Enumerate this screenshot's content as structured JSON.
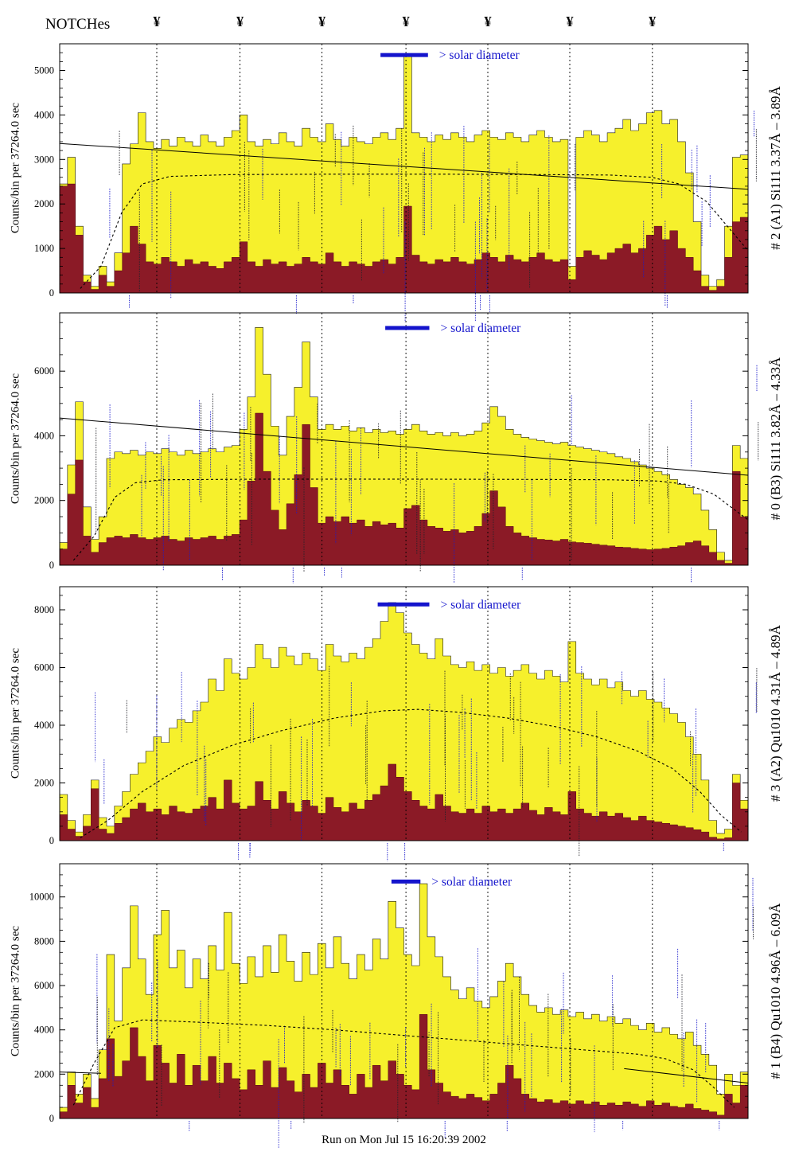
{
  "header": {
    "notches_label": "NOTCHes",
    "notch_symbol": "¥"
  },
  "y_axis_label": "Counts/bin per  37264.0 sec",
  "solar_label": "> solar diameter",
  "footer": {
    "run_text": "Run on Mon Jul 15 16:20:39 2002"
  },
  "colors": {
    "hist_fill": "#f6f02c",
    "hist_outline": "#1a1a1a",
    "background_fill": "#8b1a26",
    "annotation_blue": "#1a1acb",
    "solar_blue": "#1414cc",
    "axis_black": "#000000"
  },
  "notch_positions": [
    0.141,
    0.262,
    0.381,
    0.503,
    0.622,
    0.741,
    0.861
  ],
  "chart_data": [
    {
      "type": "histogram",
      "label": "# 2 (A1) Si111  3.37Å – 3.89Å",
      "x_range": [
        0,
        1
      ],
      "ylim": [
        0,
        5600
      ],
      "yticks": [
        0,
        1000,
        2000,
        3000,
        4000,
        5000
      ],
      "y_minor_step": 200,
      "solar_bar": {
        "x1": 0.466,
        "x2": 0.535,
        "yfrac": 0.045
      },
      "series": [
        {
          "name": "total-counts",
          "color": "#f6f02c",
          "values": [
            2450,
            3050,
            1500,
            400,
            150,
            600,
            250,
            900,
            2900,
            3350,
            4050,
            3400,
            3250,
            3450,
            3300,
            3500,
            3400,
            3300,
            3550,
            3400,
            3300,
            3500,
            3650,
            4000,
            3400,
            3300,
            3450,
            3350,
            3600,
            3400,
            3300,
            3700,
            3500,
            3400,
            3800,
            3450,
            3300,
            3500,
            3400,
            3350,
            3500,
            3600,
            3450,
            3700,
            5350,
            3600,
            3500,
            3400,
            3550,
            3450,
            3600,
            3500,
            3400,
            3550,
            3650,
            3500,
            3450,
            3600,
            3500,
            3400,
            3550,
            3650,
            3500,
            3400,
            3450,
            600,
            3500,
            3650,
            3550,
            3400,
            3600,
            3700,
            3900,
            3650,
            3800,
            4050,
            4100,
            3800,
            3900,
            3400,
            2700,
            1600,
            400,
            150,
            300,
            1500,
            3050,
            3100
          ]
        },
        {
          "name": "background-counts",
          "color": "#8b1a26",
          "values": [
            2400,
            2450,
            1300,
            250,
            80,
            400,
            150,
            500,
            900,
            1500,
            1100,
            700,
            650,
            800,
            700,
            600,
            750,
            650,
            700,
            600,
            550,
            700,
            800,
            1150,
            700,
            600,
            750,
            650,
            700,
            600,
            650,
            800,
            700,
            650,
            900,
            700,
            600,
            700,
            650,
            600,
            700,
            750,
            650,
            800,
            1950,
            850,
            700,
            650,
            750,
            700,
            800,
            700,
            650,
            750,
            900,
            800,
            700,
            850,
            750,
            700,
            800,
            900,
            750,
            700,
            750,
            300,
            800,
            950,
            850,
            750,
            900,
            1000,
            1100,
            900,
            1000,
            1300,
            1500,
            1200,
            1400,
            1000,
            800,
            500,
            150,
            60,
            150,
            800,
            1600,
            1700
          ]
        }
      ],
      "dashed_curve": [
        [
          0.03,
          100
        ],
        [
          0.06,
          600
        ],
        [
          0.09,
          1800
        ],
        [
          0.12,
          2450
        ],
        [
          0.16,
          2620
        ],
        [
          0.25,
          2660
        ],
        [
          0.4,
          2670
        ],
        [
          0.55,
          2670
        ],
        [
          0.7,
          2660
        ],
        [
          0.8,
          2650
        ],
        [
          0.86,
          2600
        ],
        [
          0.9,
          2450
        ],
        [
          0.94,
          2050
        ],
        [
          0.97,
          1500
        ],
        [
          1.0,
          950
        ]
      ],
      "solid_lines": [
        [
          [
            0,
            3360
          ],
          [
            1,
            2330
          ]
        ]
      ]
    },
    {
      "type": "histogram",
      "label": "# 0 (B3) Si111  3.82Å – 4.33Å",
      "x_range": [
        0,
        1
      ],
      "ylim": [
        0,
        7800
      ],
      "yticks": [
        0,
        2000,
        4000,
        6000
      ],
      "y_minor_step": 500,
      "solar_bar": {
        "x1": 0.473,
        "x2": 0.537,
        "yfrac": 0.06
      },
      "series": [
        {
          "name": "total-counts",
          "color": "#f6f02c",
          "values": [
            700,
            3100,
            5050,
            1800,
            800,
            1500,
            3300,
            3500,
            3450,
            3550,
            3400,
            3500,
            3450,
            3600,
            3500,
            3400,
            3550,
            3450,
            3500,
            3600,
            3500,
            3650,
            3700,
            4200,
            5200,
            7350,
            5900,
            4300,
            3400,
            4600,
            5500,
            6900,
            5200,
            4200,
            4350,
            4200,
            4300,
            4150,
            4250,
            4100,
            4200,
            4100,
            4150,
            4050,
            4200,
            4350,
            4150,
            4050,
            4100,
            4000,
            4100,
            4000,
            4050,
            4150,
            4400,
            4900,
            4600,
            4200,
            4050,
            3950,
            3900,
            3850,
            3800,
            3750,
            3800,
            3700,
            3650,
            3600,
            3550,
            3500,
            3450,
            3350,
            3300,
            3200,
            3100,
            3000,
            2900,
            2800,
            2650,
            2500,
            2400,
            2200,
            1700,
            1100,
            400,
            150,
            3700,
            3300
          ]
        },
        {
          "name": "background-counts",
          "color": "#8b1a26",
          "values": [
            500,
            2200,
            3250,
            900,
            400,
            700,
            850,
            900,
            850,
            950,
            850,
            800,
            850,
            900,
            800,
            750,
            850,
            800,
            850,
            900,
            800,
            900,
            950,
            1400,
            2600,
            4700,
            2900,
            1700,
            1100,
            1900,
            2800,
            4350,
            2400,
            1300,
            1500,
            1350,
            1500,
            1300,
            1400,
            1200,
            1350,
            1250,
            1300,
            1150,
            1750,
            1850,
            1400,
            1200,
            1150,
            1050,
            1100,
            1000,
            1050,
            1200,
            1600,
            2300,
            1800,
            1200,
            1000,
            900,
            850,
            800,
            780,
            750,
            800,
            720,
            700,
            680,
            650,
            620,
            600,
            560,
            550,
            520,
            500,
            480,
            500,
            520,
            560,
            600,
            700,
            750,
            600,
            400,
            150,
            60,
            2900,
            1500
          ]
        }
      ],
      "dashed_curve": [
        [
          0.02,
          150
        ],
        [
          0.05,
          900
        ],
        [
          0.08,
          2100
        ],
        [
          0.11,
          2550
        ],
        [
          0.15,
          2640
        ],
        [
          0.3,
          2660
        ],
        [
          0.5,
          2660
        ],
        [
          0.7,
          2650
        ],
        [
          0.8,
          2640
        ],
        [
          0.87,
          2600
        ],
        [
          0.91,
          2500
        ],
        [
          0.95,
          2200
        ],
        [
          1.0,
          1400
        ]
      ],
      "solid_lines": [
        [
          [
            0,
            4550
          ],
          [
            1,
            2780
          ]
        ]
      ]
    },
    {
      "type": "histogram",
      "label": "# 3 (A2) Qu1010  4.31Å – 4.89Å",
      "x_range": [
        0,
        1
      ],
      "ylim": [
        0,
        8800
      ],
      "yticks": [
        0,
        2000,
        4000,
        6000,
        8000
      ],
      "y_minor_step": 500,
      "solar_bar": {
        "x1": 0.462,
        "x2": 0.537,
        "yfrac": 0.07
      },
      "series": [
        {
          "name": "total-counts",
          "color": "#f6f02c",
          "values": [
            1600,
            700,
            300,
            900,
            2100,
            800,
            500,
            1200,
            1700,
            2300,
            2700,
            3100,
            3600,
            3400,
            3900,
            4200,
            4100,
            4500,
            4800,
            5600,
            5200,
            6300,
            5800,
            5600,
            6000,
            6800,
            6300,
            6000,
            6700,
            6400,
            6100,
            6500,
            6300,
            5900,
            6800,
            6400,
            6200,
            6500,
            6300,
            6700,
            7000,
            7600,
            8250,
            7900,
            7200,
            6800,
            6500,
            6300,
            7000,
            6400,
            6100,
            6000,
            6200,
            5900,
            6100,
            5800,
            6000,
            5700,
            5900,
            6100,
            5800,
            5600,
            5900,
            5700,
            5500,
            6900,
            5800,
            5600,
            5400,
            5600,
            5300,
            5500,
            5200,
            5000,
            5200,
            4900,
            4800,
            4600,
            4400,
            4100,
            3600,
            3000,
            2100,
            700,
            250,
            400,
            2300,
            1400
          ]
        },
        {
          "name": "background-counts",
          "color": "#8b1a26",
          "values": [
            900,
            400,
            150,
            500,
            1800,
            400,
            250,
            600,
            800,
            1100,
            1300,
            1000,
            1100,
            900,
            1200,
            1000,
            950,
            1100,
            1200,
            1500,
            1100,
            2100,
            1300,
            1100,
            1200,
            2050,
            1400,
            1100,
            1700,
            1300,
            1000,
            1400,
            1200,
            950,
            1500,
            1150,
            1000,
            1300,
            1100,
            1400,
            1600,
            1900,
            2650,
            2200,
            1700,
            1400,
            1200,
            1100,
            1600,
            1200,
            1000,
            950,
            1100,
            950,
            1200,
            1000,
            1100,
            950,
            1100,
            1300,
            1050,
            900,
            1150,
            1000,
            900,
            1700,
            1100,
            950,
            850,
            1000,
            850,
            950,
            800,
            700,
            850,
            700,
            650,
            600,
            550,
            500,
            450,
            380,
            300,
            120,
            60,
            100,
            2000,
            1100
          ]
        }
      ],
      "dashed_curve": [
        [
          0.03,
          100
        ],
        [
          0.07,
          700
        ],
        [
          0.12,
          1700
        ],
        [
          0.18,
          2600
        ],
        [
          0.25,
          3300
        ],
        [
          0.32,
          3800
        ],
        [
          0.4,
          4250
        ],
        [
          0.47,
          4500
        ],
        [
          0.52,
          4550
        ],
        [
          0.58,
          4450
        ],
        [
          0.65,
          4250
        ],
        [
          0.72,
          3950
        ],
        [
          0.78,
          3600
        ],
        [
          0.84,
          3100
        ],
        [
          0.89,
          2500
        ],
        [
          0.93,
          1700
        ],
        [
          0.96,
          900
        ],
        [
          0.99,
          300
        ]
      ],
      "solid_lines": []
    },
    {
      "type": "histogram",
      "label": "# 1 (B4) Qu1010  4.96Å – 6.09Å",
      "x_range": [
        0,
        1
      ],
      "ylim": [
        0,
        11500
      ],
      "yticks": [
        0,
        2000,
        4000,
        6000,
        8000,
        10000
      ],
      "y_minor_step": 500,
      "solar_bar": {
        "x1": 0.482,
        "x2": 0.524,
        "yfrac": 0.07
      },
      "series": [
        {
          "name": "total-counts",
          "color": "#f6f02c",
          "values": [
            500,
            2100,
            1100,
            2000,
            900,
            3100,
            7400,
            4400,
            6800,
            9600,
            7200,
            5600,
            8300,
            9400,
            6800,
            7600,
            5900,
            7200,
            6300,
            7800,
            6700,
            9300,
            7000,
            6100,
            7300,
            6400,
            7800,
            6600,
            8300,
            7100,
            6200,
            7500,
            6500,
            7900,
            6800,
            8200,
            7000,
            6300,
            7400,
            6700,
            8100,
            7200,
            9800,
            8600,
            7400,
            6900,
            10600,
            8200,
            7300,
            6400,
            5800,
            5400,
            5900,
            5300,
            5000,
            5500,
            6200,
            7000,
            6400,
            5600,
            5100,
            4800,
            5000,
            4700,
            4900,
            4600,
            4800,
            4500,
            4700,
            4400,
            4600,
            4300,
            4500,
            4200,
            4000,
            4300,
            3900,
            4100,
            3800,
            3600,
            3900,
            3300,
            2900,
            2400,
            1100,
            2000,
            1500,
            2100
          ]
        },
        {
          "name": "background-counts",
          "color": "#8b1a26",
          "values": [
            300,
            1500,
            700,
            1400,
            500,
            1800,
            3600,
            1900,
            2600,
            4100,
            2800,
            1700,
            3300,
            2500,
            1600,
            2900,
            1500,
            2400,
            1700,
            2800,
            1600,
            2500,
            1800,
            1300,
            2200,
            1500,
            2600,
            1400,
            2300,
            1700,
            1200,
            2000,
            1400,
            2500,
            1600,
            2200,
            1500,
            1100,
            2000,
            1400,
            2400,
            1700,
            2600,
            2000,
            1500,
            1300,
            4700,
            2200,
            1600,
            1200,
            1000,
            900,
            1100,
            950,
            800,
            1100,
            1600,
            2400,
            1800,
            1100,
            900,
            750,
            850,
            700,
            800,
            650,
            800,
            650,
            750,
            600,
            700,
            600,
            750,
            650,
            550,
            800,
            600,
            700,
            550,
            500,
            650,
            450,
            380,
            300,
            150,
            1100,
            700,
            1500
          ]
        }
      ],
      "dashed_curve": [
        [
          0.02,
          600
        ],
        [
          0.05,
          2500
        ],
        [
          0.08,
          4100
        ],
        [
          0.12,
          4450
        ],
        [
          0.2,
          4350
        ],
        [
          0.3,
          4200
        ],
        [
          0.4,
          4000
        ],
        [
          0.5,
          3750
        ],
        [
          0.6,
          3500
        ],
        [
          0.7,
          3250
        ],
        [
          0.78,
          3050
        ],
        [
          0.84,
          2900
        ],
        [
          0.88,
          2700
        ],
        [
          0.92,
          2200
        ],
        [
          0.95,
          1400
        ],
        [
          0.98,
          500
        ]
      ],
      "solid_lines": [
        [
          [
            0,
            2100
          ],
          [
            0.06,
            2040
          ]
        ],
        [
          [
            0.82,
            2250
          ],
          [
            1,
            1600
          ]
        ]
      ]
    }
  ]
}
